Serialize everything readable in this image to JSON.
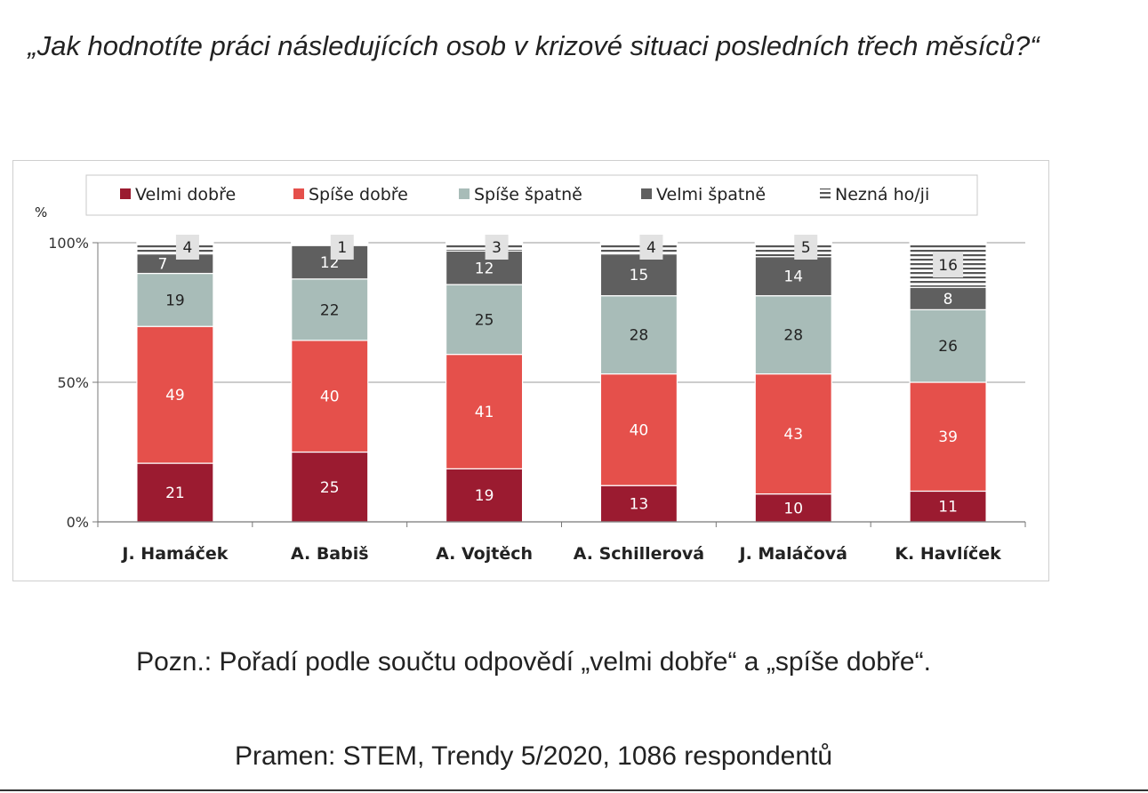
{
  "question": "„Jak hodnotíte práci následujících osob v krizové situaci posledních třech měsíců?“",
  "note": "Pozn.: Pořadí podle součtu odpovědí „velmi dobře“ a „spíše dobře“.",
  "source": "Pramen: STEM, Trendy 5/2020, 1086 respondentů",
  "chart_data": {
    "type": "bar",
    "stacked": true,
    "title": "",
    "xlabel": "",
    "ylabel": "%",
    "ylim": [
      0,
      100
    ],
    "yticks": [
      "0%",
      "50%",
      "100%"
    ],
    "grid": true,
    "legend_position": "top",
    "categories": [
      "J. Hamáček",
      "A. Babiš",
      "A. Vojtěch",
      "A. Schillerová",
      "J. Maláčová",
      "K. Havlíček"
    ],
    "series": [
      {
        "name": "Velmi dobře",
        "color": "#9b1b30",
        "values": [
          21,
          25,
          19,
          13,
          10,
          11
        ]
      },
      {
        "name": "Spíše dobře",
        "color": "#e5504b",
        "values": [
          49,
          40,
          41,
          40,
          43,
          39
        ]
      },
      {
        "name": "Spíše špatně",
        "color": "#a8bcb8",
        "values": [
          19,
          22,
          25,
          28,
          28,
          26
        ]
      },
      {
        "name": "Velmi špatně",
        "color": "#5f5f5f",
        "values": [
          7,
          12,
          12,
          15,
          14,
          8
        ]
      },
      {
        "name": "Nezná ho/ji",
        "color": "#ffffff",
        "pattern": "horizontal-stripes",
        "values": [
          4,
          1,
          3,
          4,
          5,
          16
        ]
      }
    ]
  }
}
